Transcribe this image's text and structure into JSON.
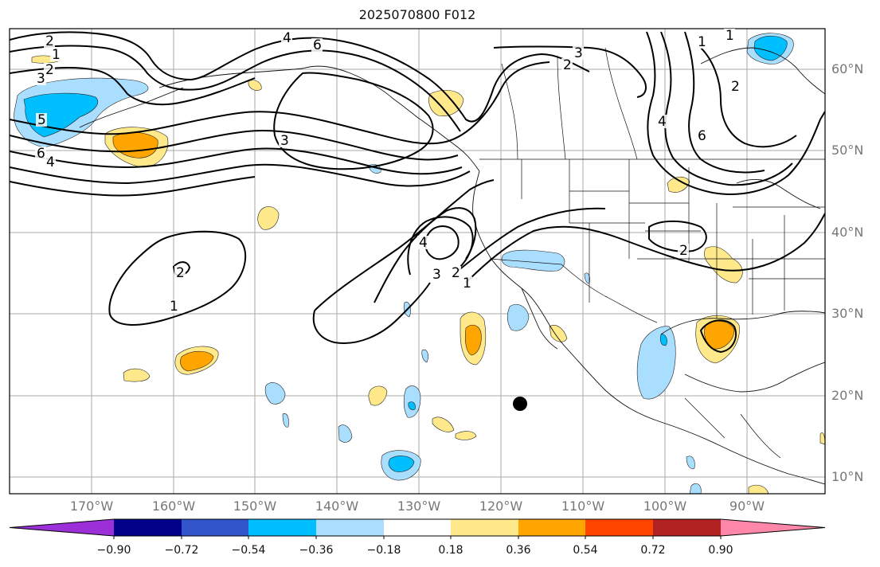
{
  "title": "2025070800 F012",
  "latitude_labels": [
    "60°N",
    "50°N",
    "40°N",
    "30°N",
    "20°N",
    "10°N"
  ],
  "longitude_labels": [
    "170°W",
    "160°W",
    "150°W",
    "140°W",
    "130°W",
    "120°W",
    "110°W",
    "100°W",
    "90°W"
  ],
  "colorbar": {
    "tick_labels": [
      "−0.90",
      "−0.72",
      "−0.54",
      "−0.36",
      "−0.18",
      "0.18",
      "0.36",
      "0.54",
      "0.72",
      "0.90"
    ],
    "colors": [
      "#9b30d8",
      "#000088",
      "#3355cc",
      "#00bfff",
      "#aadeff",
      "#ffffff",
      "#ffe98a",
      "#ffa500",
      "#ff4500",
      "#b22222",
      "#ff88aa"
    ]
  },
  "contour_labels": [
    "2",
    "1",
    "2",
    "3",
    "4",
    "6",
    "5",
    "6",
    "4",
    "3",
    "2",
    "2",
    "1",
    "4",
    "3",
    "2",
    "1",
    "2",
    "3",
    "1",
    "1",
    "2",
    "4",
    "6"
  ],
  "storm_marker": "black-dot"
}
